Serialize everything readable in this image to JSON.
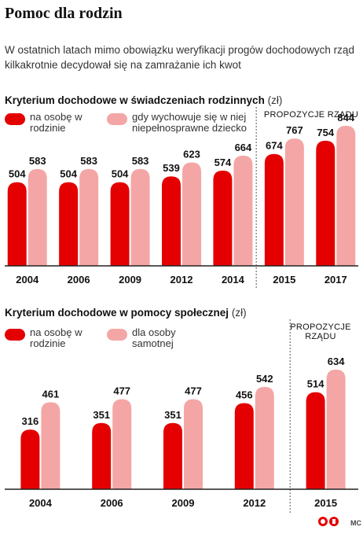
{
  "header": {
    "title": "Pomoc dla rodzin",
    "intro": "W ostatnich latach mimo obowiązku weryfikacji progów dochodowych rząd kilkakrotnie decydował się na zamrażanie ich kwot"
  },
  "colors": {
    "red": "#e40000",
    "pink": "#f4a6a6",
    "axis": "#222222",
    "divider": "#555555"
  },
  "chart_data": [
    {
      "type": "bar",
      "title": "Kryterium dochodowe w świadczeniach rodzinnych",
      "unit": "(zł)",
      "categories": [
        "2004",
        "2006",
        "2009",
        "2012",
        "2014",
        "2015",
        "2017"
      ],
      "series": [
        {
          "name": "na osobę w rodzinie",
          "values": [
            504,
            504,
            504,
            539,
            574,
            674,
            754
          ]
        },
        {
          "name": "gdy wychowuje się w niej niepełnosprawne dziecko",
          "values": [
            583,
            583,
            583,
            623,
            664,
            767,
            844
          ]
        }
      ],
      "annotation": "PROPOZYCJE RZĄDU",
      "proposal_from_index": 5,
      "ylim": [
        0,
        900
      ]
    },
    {
      "type": "bar",
      "title": "Kryterium dochodowe w pomocy społecznej",
      "unit": "(zł)",
      "categories": [
        "2004",
        "2006",
        "2009",
        "2012",
        "2015"
      ],
      "series": [
        {
          "name": "na osobę w rodzinie",
          "values": [
            316,
            351,
            351,
            456,
            514
          ]
        },
        {
          "name": "dla osoby samotnej",
          "values": [
            461,
            477,
            477,
            542,
            634
          ]
        }
      ],
      "annotation": "PROPOZYCJE RZĄDU",
      "proposal_from_index": 4,
      "ylim": [
        0,
        700
      ]
    }
  ],
  "footer": {
    "signature": "MC"
  }
}
